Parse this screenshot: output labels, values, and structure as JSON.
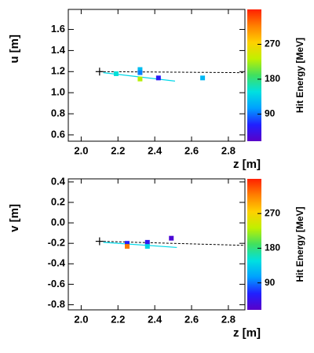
{
  "chart_data": [
    {
      "type": "scatter",
      "x_label": "z [m]",
      "y_label": "u [m]",
      "colorbar_label": "Hit Energy [MeV]",
      "x": [
        2.19,
        2.32,
        2.32,
        2.32,
        2.42,
        2.66
      ],
      "values": [
        1.18,
        1.22,
        1.19,
        1.13,
        1.14,
        1.14
      ],
      "energy": [
        150,
        125,
        95,
        230,
        55,
        120
      ],
      "seed": {
        "x": 2.1,
        "y": 1.2
      },
      "extrapolation": {
        "x": [
          2.1,
          2.89
        ],
        "y": [
          1.2,
          1.19
        ]
      },
      "track": {
        "x": [
          2.12,
          2.51
        ],
        "y": [
          1.19,
          1.11
        ],
        "color": "#00d8e8"
      },
      "xlim": [
        1.93,
        2.89
      ],
      "xticks": [
        {
          "value": 2,
          "label": "2.0"
        },
        2.2,
        2.4,
        2.6,
        2.8
      ],
      "ylim": [
        0.54,
        1.79
      ],
      "yticks": [
        0.6,
        0.8,
        {
          "value": 1,
          "label": "1.0"
        },
        1.2,
        1.4,
        1.6
      ],
      "zlim": [
        20,
        360
      ],
      "zticks": [
        90,
        180,
        270
      ],
      "colormap": [
        "#5a00c8",
        "#2020ff",
        "#00a0ff",
        "#00e0e0",
        "#40e060",
        "#c0f000",
        "#ffd000",
        "#ff8000",
        "#ff2000"
      ]
    },
    {
      "type": "scatter",
      "x_label": "z [m]",
      "y_label": "v [m]",
      "colorbar_label": "Hit Energy [MeV]",
      "x": [
        2.25,
        2.25,
        2.36,
        2.36,
        2.49
      ],
      "values": [
        -0.2,
        -0.23,
        -0.19,
        -0.23,
        -0.15
      ],
      "energy": [
        60,
        320,
        50,
        140,
        30
      ],
      "seed": {
        "x": 2.1,
        "y": -0.18
      },
      "extrapolation": {
        "x": [
          2.1,
          2.89
        ],
        "y": [
          -0.18,
          -0.22
        ]
      },
      "track": {
        "x": [
          2.12,
          2.52
        ],
        "y": [
          -0.19,
          -0.24
        ],
        "color": "#00d8e8"
      },
      "xlim": [
        1.93,
        2.89
      ],
      "xticks": [
        {
          "value": 2,
          "label": "2.0"
        },
        2.2,
        2.4,
        2.6,
        2.8
      ],
      "ylim": [
        -0.85,
        0.43
      ],
      "yticks": [
        -0.8,
        -0.6,
        -0.4,
        -0.2,
        {
          "value": 0,
          "label": "0.0"
        },
        0.2,
        0.4
      ],
      "zlim": [
        20,
        360
      ],
      "zticks": [
        90,
        180,
        270
      ],
      "colormap": [
        "#5a00c8",
        "#2020ff",
        "#00a0ff",
        "#00e0e0",
        "#40e060",
        "#c0f000",
        "#ffd000",
        "#ff8000",
        "#ff2000"
      ]
    }
  ]
}
